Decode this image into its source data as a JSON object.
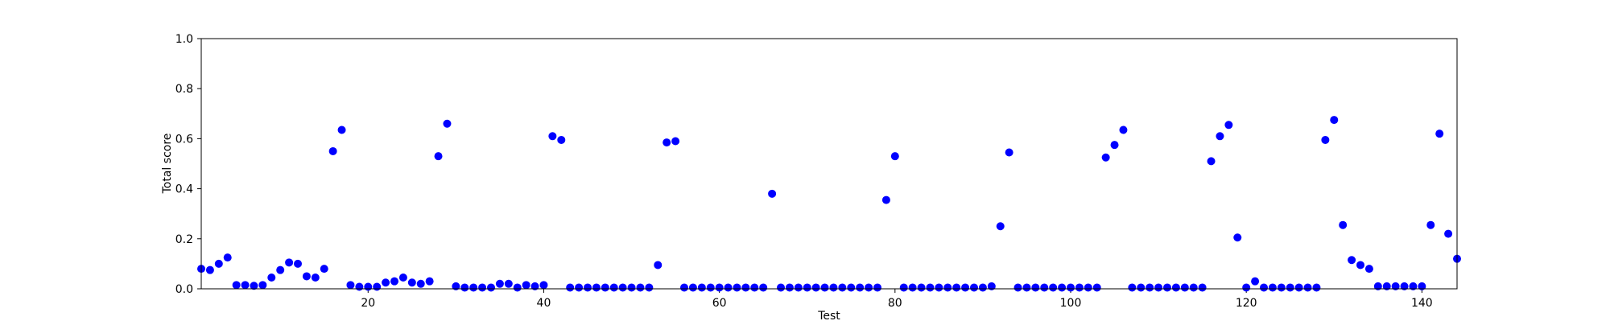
{
  "chart_data": {
    "type": "scatter",
    "title": "",
    "xlabel": "Test",
    "ylabel": "Total score",
    "xlim": [
      1,
      144
    ],
    "ylim": [
      0.0,
      1.0
    ],
    "x_ticks": [
      20,
      40,
      60,
      80,
      100,
      120,
      140
    ],
    "y_ticks": [
      0.0,
      0.2,
      0.4,
      0.6,
      0.8,
      1.0
    ],
    "x_tick_labels": [
      "20",
      "40",
      "60",
      "80",
      "100",
      "120",
      "140"
    ],
    "y_tick_labels": [
      "0.0",
      "0.2",
      "0.4",
      "0.6",
      "0.8",
      "1.0"
    ],
    "grid": false,
    "legend": "none",
    "marker_color": "#0000ff",
    "series": [
      {
        "x": [
          1,
          2,
          3,
          4,
          5,
          6,
          7,
          8,
          9,
          10,
          11,
          12,
          13,
          14,
          15,
          16,
          17,
          18,
          19,
          20,
          21,
          22,
          23,
          24,
          25,
          26,
          27,
          28,
          29,
          30,
          31,
          32,
          33,
          34,
          35,
          36,
          37,
          38,
          39,
          40,
          41,
          42,
          43,
          44,
          45,
          46,
          47,
          48,
          49,
          50,
          51,
          52,
          53,
          54,
          55,
          56,
          57,
          58,
          59,
          60,
          61,
          62,
          63,
          64,
          65,
          66,
          67,
          68,
          69,
          70,
          71,
          72,
          73,
          74,
          75,
          76,
          77,
          78,
          79,
          80,
          81,
          82,
          83,
          84,
          85,
          86,
          87,
          88,
          89,
          90,
          91,
          92,
          93,
          94,
          95,
          96,
          97,
          98,
          99,
          100,
          101,
          102,
          103,
          104,
          105,
          106,
          107,
          108,
          109,
          110,
          111,
          112,
          113,
          114,
          115,
          116,
          117,
          118,
          119,
          120,
          121,
          122,
          123,
          124,
          125,
          126,
          127,
          128,
          129,
          130,
          131,
          132,
          133,
          134,
          135,
          136,
          137,
          138,
          139,
          140,
          141,
          142,
          143,
          144
        ],
        "y": [
          0.08,
          0.075,
          0.1,
          0.125,
          0.015,
          0.015,
          0.012,
          0.015,
          0.045,
          0.075,
          0.105,
          0.1,
          0.05,
          0.045,
          0.08,
          0.55,
          0.635,
          0.015,
          0.008,
          0.008,
          0.008,
          0.025,
          0.03,
          0.045,
          0.025,
          0.02,
          0.03,
          0.53,
          0.66,
          0.01,
          0.005,
          0.005,
          0.005,
          0.005,
          0.02,
          0.02,
          0.005,
          0.015,
          0.01,
          0.015,
          0.61,
          0.595,
          0.005,
          0.005,
          0.005,
          0.005,
          0.005,
          0.005,
          0.005,
          0.005,
          0.005,
          0.005,
          0.095,
          0.585,
          0.59,
          0.005,
          0.005,
          0.005,
          0.005,
          0.005,
          0.005,
          0.005,
          0.005,
          0.005,
          0.005,
          0.38,
          0.005,
          0.005,
          0.005,
          0.005,
          0.005,
          0.005,
          0.005,
          0.005,
          0.005,
          0.005,
          0.005,
          0.005,
          0.355,
          0.53,
          0.005,
          0.005,
          0.005,
          0.005,
          0.005,
          0.005,
          0.005,
          0.005,
          0.005,
          0.005,
          0.01,
          0.25,
          0.545,
          0.005,
          0.005,
          0.005,
          0.005,
          0.005,
          0.005,
          0.005,
          0.005,
          0.005,
          0.005,
          0.525,
          0.575,
          0.635,
          0.005,
          0.005,
          0.005,
          0.005,
          0.005,
          0.005,
          0.005,
          0.005,
          0.005,
          0.51,
          0.61,
          0.655,
          0.205,
          0.005,
          0.03,
          0.005,
          0.005,
          0.005,
          0.005,
          0.005,
          0.005,
          0.005,
          0.595,
          0.675,
          0.255,
          0.115,
          0.095,
          0.08,
          0.01,
          0.01,
          0.01,
          0.01,
          0.01,
          0.01,
          0.255,
          0.62,
          0.22,
          0.12
        ]
      }
    ]
  }
}
